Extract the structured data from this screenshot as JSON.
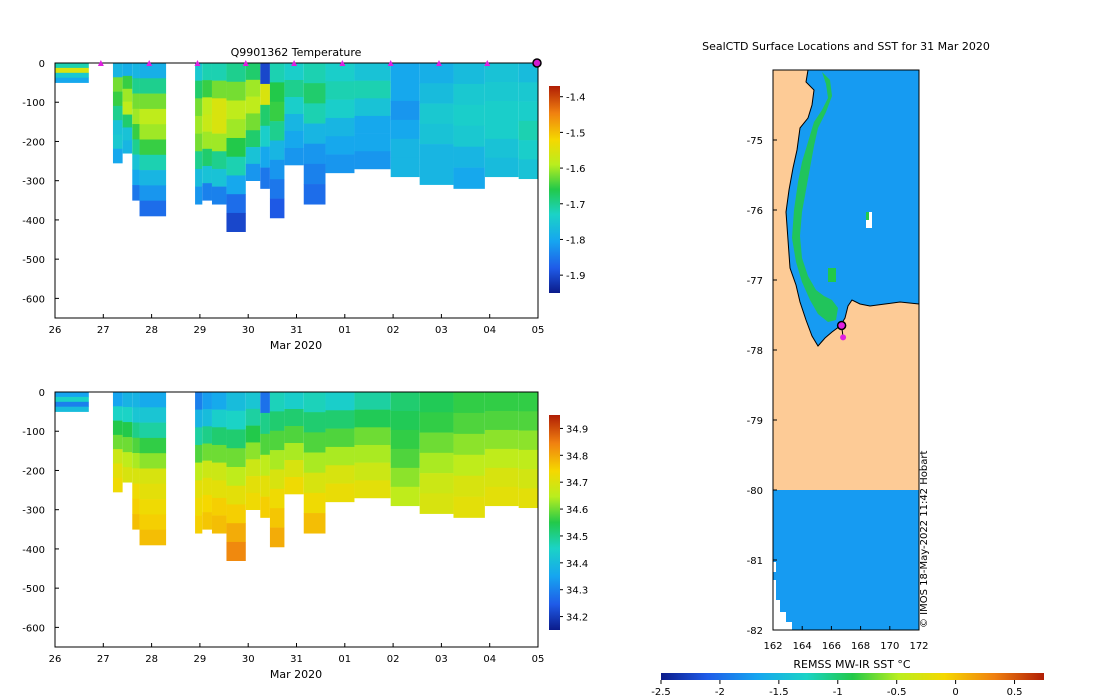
{
  "chart_data": [
    {
      "type": "heatmap",
      "name": "temperature-section",
      "title": "Q9901362  Temperature",
      "xlabel": "Mar 2020",
      "xticks": [
        "26",
        "27",
        "28",
        "29",
        "30",
        "31",
        "01",
        "02",
        "03",
        "04",
        "05"
      ],
      "yticks": [
        "0",
        "-100",
        "-200",
        "-300",
        "-400",
        "-500",
        "-600"
      ],
      "ylim": [
        -650,
        0
      ],
      "colorbar": {
        "ticks": [
          "-1.4",
          "-1.5",
          "-1.6",
          "-1.7",
          "-1.8",
          "-1.9"
        ],
        "range": [
          -1.95,
          -1.37
        ]
      },
      "profile_markers_day": [
        0.95,
        1.95,
        2.95,
        3.95,
        4.95,
        5.95,
        6.95,
        7.95,
        8.95,
        9.95
      ],
      "profiles": [
        {
          "x0": 0.0,
          "x1": 0.7,
          "depth": 50,
          "v": [
            -1.72,
            -1.55,
            -1.75,
            -1.8
          ]
        },
        {
          "x0": 1.2,
          "x1": 1.4,
          "depth": 255,
          "v": [
            -1.78,
            -1.62,
            -1.65,
            -1.7,
            -1.76,
            -1.75,
            -1.8
          ]
        },
        {
          "x0": 1.4,
          "x1": 1.6,
          "depth": 230,
          "v": [
            -1.79,
            -1.65,
            -1.6,
            -1.58,
            -1.68,
            -1.76,
            -1.78
          ]
        },
        {
          "x0": 1.6,
          "x1": 1.75,
          "depth": 350,
          "v": [
            -1.78,
            -1.7,
            -1.62,
            -1.6,
            -1.65,
            -1.7,
            -1.76,
            -1.8,
            -1.85
          ]
        },
        {
          "x0": 1.75,
          "x1": 2.3,
          "depth": 390,
          "v": [
            -1.79,
            -1.7,
            -1.62,
            -1.58,
            -1.6,
            -1.65,
            -1.72,
            -1.78,
            -1.82,
            -1.86
          ]
        },
        {
          "x0": 2.9,
          "x1": 3.05,
          "depth": 360,
          "v": [
            -1.75,
            -1.68,
            -1.62,
            -1.6,
            -1.62,
            -1.7,
            -1.77,
            -1.82
          ]
        },
        {
          "x0": 3.05,
          "x1": 3.25,
          "depth": 350,
          "v": [
            -1.72,
            -1.65,
            -1.58,
            -1.57,
            -1.6,
            -1.68,
            -1.76,
            -1.84
          ]
        },
        {
          "x0": 3.25,
          "x1": 3.55,
          "depth": 360,
          "v": [
            -1.72,
            -1.62,
            -1.55,
            -1.55,
            -1.6,
            -1.7,
            -1.76,
            -1.84
          ]
        },
        {
          "x0": 3.55,
          "x1": 3.95,
          "depth": 430,
          "v": [
            -1.7,
            -1.62,
            -1.58,
            -1.6,
            -1.66,
            -1.72,
            -1.8,
            -1.86,
            -1.9
          ]
        },
        {
          "x0": 3.95,
          "x1": 4.25,
          "depth": 300,
          "v": [
            -1.68,
            -1.6,
            -1.58,
            -1.62,
            -1.68,
            -1.76,
            -1.82
          ]
        },
        {
          "x0": 4.25,
          "x1": 4.45,
          "depth": 320,
          "v": [
            -1.9,
            -1.55,
            -1.68,
            -1.74,
            -1.8,
            -1.85
          ]
        },
        {
          "x0": 4.45,
          "x1": 4.75,
          "depth": 395,
          "v": [
            -1.72,
            -1.66,
            -1.65,
            -1.7,
            -1.78,
            -1.82,
            -1.85,
            -1.88
          ]
        },
        {
          "x0": 4.75,
          "x1": 5.15,
          "depth": 260,
          "v": [
            -1.74,
            -1.7,
            -1.74,
            -1.78,
            -1.8,
            -1.82
          ]
        },
        {
          "x0": 5.15,
          "x1": 5.6,
          "depth": 360,
          "v": [
            -1.72,
            -1.68,
            -1.72,
            -1.78,
            -1.82,
            -1.84,
            -1.86
          ]
        },
        {
          "x0": 5.6,
          "x1": 6.2,
          "depth": 280,
          "v": [
            -1.74,
            -1.72,
            -1.74,
            -1.78,
            -1.8,
            -1.82
          ]
        },
        {
          "x0": 6.2,
          "x1": 6.95,
          "depth": 270,
          "v": [
            -1.76,
            -1.72,
            -1.76,
            -1.8,
            -1.8,
            -1.82
          ]
        },
        {
          "x0": 6.95,
          "x1": 7.55,
          "depth": 290,
          "v": [
            -1.8,
            -1.8,
            -1.82,
            -1.8,
            -1.78,
            -1.78
          ]
        },
        {
          "x0": 7.55,
          "x1": 8.25,
          "depth": 310,
          "v": [
            -1.79,
            -1.77,
            -1.75,
            -1.76,
            -1.78,
            -1.78
          ]
        },
        {
          "x0": 8.25,
          "x1": 8.9,
          "depth": 320,
          "v": [
            -1.77,
            -1.75,
            -1.74,
            -1.75,
            -1.78,
            -1.8
          ]
        },
        {
          "x0": 8.9,
          "x1": 9.6,
          "depth": 290,
          "v": [
            -1.76,
            -1.75,
            -1.74,
            -1.74,
            -1.76,
            -1.77
          ]
        },
        {
          "x0": 9.6,
          "x1": 10.0,
          "depth": 295,
          "v": [
            -1.77,
            -1.75,
            -1.74,
            -1.72,
            -1.74,
            -1.76
          ]
        }
      ]
    },
    {
      "type": "heatmap",
      "name": "salinity-section",
      "title": "",
      "xlabel": "Mar 2020",
      "xticks": [
        "26",
        "27",
        "28",
        "29",
        "30",
        "31",
        "01",
        "02",
        "03",
        "04",
        "05"
      ],
      "yticks": [
        "0",
        "-100",
        "-200",
        "-300",
        "-400",
        "-500",
        "-600"
      ],
      "ylim": [
        -650,
        0
      ],
      "colorbar": {
        "ticks": [
          "34.9",
          "34.8",
          "34.7",
          "34.6",
          "34.5",
          "34.4",
          "34.3",
          "34.2"
        ],
        "range": [
          34.15,
          34.95
        ]
      },
      "profiles": [
        {
          "x0": 0.0,
          "x1": 0.7,
          "depth": 50,
          "v": [
            34.35,
            34.45,
            34.3,
            34.4
          ]
        },
        {
          "x0": 1.2,
          "x1": 1.4,
          "depth": 255,
          "v": [
            34.35,
            34.45,
            34.55,
            34.6,
            34.68,
            34.72,
            34.74
          ]
        },
        {
          "x0": 1.4,
          "x1": 1.6,
          "depth": 230,
          "v": [
            34.38,
            34.45,
            34.55,
            34.6,
            34.66,
            34.7
          ]
        },
        {
          "x0": 1.6,
          "x1": 1.75,
          "depth": 350,
          "v": [
            34.38,
            34.42,
            34.5,
            34.58,
            34.64,
            34.7,
            34.74,
            34.76,
            34.78
          ]
        },
        {
          "x0": 1.75,
          "x1": 2.3,
          "depth": 390,
          "v": [
            34.36,
            34.42,
            34.48,
            34.56,
            34.62,
            34.7,
            34.72,
            34.74,
            34.76,
            34.78
          ]
        },
        {
          "x0": 2.9,
          "x1": 3.05,
          "depth": 360,
          "v": [
            34.3,
            34.38,
            34.48,
            34.58,
            34.66,
            34.72,
            34.74,
            34.76
          ]
        },
        {
          "x0": 3.05,
          "x1": 3.25,
          "depth": 350,
          "v": [
            34.34,
            34.4,
            34.5,
            34.6,
            34.68,
            34.72,
            34.75,
            34.77
          ]
        },
        {
          "x0": 3.25,
          "x1": 3.55,
          "depth": 360,
          "v": [
            34.36,
            34.44,
            34.52,
            34.6,
            34.68,
            34.72,
            34.76,
            34.78
          ]
        },
        {
          "x0": 3.55,
          "x1": 3.95,
          "depth": 430,
          "v": [
            34.4,
            34.45,
            34.52,
            34.6,
            34.66,
            34.72,
            34.76,
            34.8,
            34.84
          ]
        },
        {
          "x0": 3.95,
          "x1": 4.25,
          "depth": 300,
          "v": [
            34.42,
            34.48,
            34.55,
            34.62,
            34.68,
            34.72,
            34.74
          ]
        },
        {
          "x0": 4.25,
          "x1": 4.45,
          "depth": 320,
          "v": [
            34.28,
            34.5,
            34.58,
            34.66,
            34.72,
            34.76
          ]
        },
        {
          "x0": 4.45,
          "x1": 4.75,
          "depth": 395,
          "v": [
            34.46,
            34.52,
            34.58,
            34.64,
            34.7,
            34.74,
            34.77,
            34.8
          ]
        },
        {
          "x0": 4.75,
          "x1": 5.15,
          "depth": 260,
          "v": [
            34.44,
            34.52,
            34.58,
            34.64,
            34.7,
            34.74
          ]
        },
        {
          "x0": 5.15,
          "x1": 5.6,
          "depth": 360,
          "v": [
            34.46,
            34.52,
            34.58,
            34.64,
            34.7,
            34.74,
            34.78
          ]
        },
        {
          "x0": 5.6,
          "x1": 6.2,
          "depth": 280,
          "v": [
            34.44,
            34.52,
            34.58,
            34.64,
            34.7,
            34.73
          ]
        },
        {
          "x0": 6.2,
          "x1": 6.95,
          "depth": 270,
          "v": [
            34.48,
            34.54,
            34.6,
            34.64,
            34.68,
            34.72
          ]
        },
        {
          "x0": 6.95,
          "x1": 7.55,
          "depth": 290,
          "v": [
            34.52,
            34.54,
            34.56,
            34.58,
            34.62,
            34.66
          ]
        },
        {
          "x0": 7.55,
          "x1": 8.25,
          "depth": 310,
          "v": [
            34.54,
            34.56,
            34.6,
            34.64,
            34.68,
            34.7
          ]
        },
        {
          "x0": 8.25,
          "x1": 8.9,
          "depth": 320,
          "v": [
            34.56,
            34.58,
            34.62,
            34.66,
            34.7,
            34.72
          ]
        },
        {
          "x0": 8.9,
          "x1": 9.6,
          "depth": 290,
          "v": [
            34.56,
            34.58,
            34.62,
            34.66,
            34.7,
            34.72
          ]
        },
        {
          "x0": 9.6,
          "x1": 10.0,
          "depth": 295,
          "v": [
            34.56,
            34.58,
            34.62,
            34.66,
            34.69,
            34.72
          ]
        }
      ]
    },
    {
      "type": "heatmap",
      "name": "sst-map",
      "title": "SealCTD Surface Locations and SST for 31 Mar 2020",
      "xticks": [
        "162",
        "164",
        "166",
        "168",
        "170",
        "172"
      ],
      "yticks": [
        "-75",
        "-76",
        "-77",
        "-78",
        "-79",
        "-80",
        "-81",
        "-82"
      ],
      "xlim": [
        162,
        172
      ],
      "ylim": [
        -82,
        -74
      ],
      "colorbar": {
        "label": "REMSS MW-IR SST °C",
        "ticks": [
          "-2.5",
          "-2",
          "-1.5",
          "-1",
          "-0.5",
          "0",
          "0.5"
        ],
        "range": [
          -2.5,
          0.75
        ]
      },
      "credit": "© IMOS 18-May-2022 11:42 Hobart",
      "float_positions": [
        {
          "lon": 166.7,
          "lat": -77.65
        },
        {
          "lon": 166.8,
          "lat": -77.82
        }
      ]
    }
  ]
}
